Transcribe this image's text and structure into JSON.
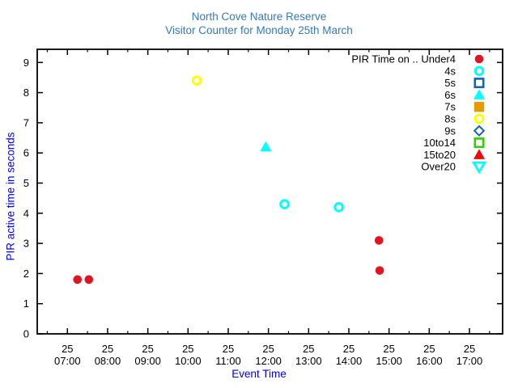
{
  "title": {
    "line1": "North Cove Nature Reserve",
    "line2": "Visitor Counter for Monday 25th March",
    "color": "#3579b9"
  },
  "axes": {
    "x_label": "Event Time",
    "y_label": "PIR active time in seconds",
    "label_color": "#0000ee",
    "x_ticks": [
      {
        "date": "25",
        "time": "07:00",
        "hour": 7
      },
      {
        "date": "25",
        "time": "08:00",
        "hour": 8
      },
      {
        "date": "25",
        "time": "09:00",
        "hour": 9
      },
      {
        "date": "25",
        "time": "10:00",
        "hour": 10
      },
      {
        "date": "25",
        "time": "11:00",
        "hour": 11
      },
      {
        "date": "25",
        "time": "12:00",
        "hour": 12
      },
      {
        "date": "25",
        "time": "13:00",
        "hour": 13
      },
      {
        "date": "25",
        "time": "14:00",
        "hour": 14
      },
      {
        "date": "25",
        "time": "15:00",
        "hour": 15
      },
      {
        "date": "25",
        "time": "16:00",
        "hour": 16
      },
      {
        "date": "25",
        "time": "17:00",
        "hour": 17
      }
    ],
    "y_ticks": [
      "0",
      "1",
      "2",
      "3",
      "4",
      "5",
      "6",
      "7",
      "8",
      "9"
    ]
  },
  "legend": {
    "entries": [
      {
        "label": "PIR Time on .. Under4",
        "shape": "circle",
        "filled": true,
        "color": "#e11422"
      },
      {
        "label": "4s",
        "shape": "circle",
        "filled": false,
        "color": "#00ffff"
      },
      {
        "label": "5s",
        "shape": "square",
        "filled": false,
        "color": "#1663ad"
      },
      {
        "label": "6s",
        "shape": "triangle-up",
        "filled": true,
        "color": "#00ffff"
      },
      {
        "label": "7s",
        "shape": "square",
        "filled": true,
        "color": "#e09c00"
      },
      {
        "label": "8s",
        "shape": "circle",
        "filled": false,
        "color": "#ffff00"
      },
      {
        "label": "9s",
        "shape": "diamond",
        "filled": false,
        "color": "#1663ad"
      },
      {
        "label": "10to14",
        "shape": "square",
        "filled": false,
        "color": "#33cc00"
      },
      {
        "label": "15to20",
        "shape": "triangle-up",
        "filled": true,
        "color": "#f00808"
      },
      {
        "label": "Over20",
        "shape": "triangle-down",
        "filled": false,
        "color": "#00ffff"
      }
    ]
  },
  "chart_data": {
    "type": "scatter",
    "title": "North Cove Nature Reserve",
    "subtitle": "Visitor Counter for Monday 25th March",
    "xlabel": "Event Time",
    "ylabel": "PIR active time in seconds",
    "x_range": [
      "06:15",
      "17:50"
    ],
    "ylim": [
      0,
      9.4
    ],
    "grid": false,
    "legend_position": "top-right-inside",
    "series": [
      {
        "name": "Under4",
        "points": [
          {
            "time": "07:15",
            "seconds": 1.8
          },
          {
            "time": "07:32",
            "seconds": 1.8
          },
          {
            "time": "14:45",
            "seconds": 3.1
          },
          {
            "time": "14:46",
            "seconds": 2.1
          }
        ]
      },
      {
        "name": "4s",
        "points": [
          {
            "time": "12:24",
            "seconds": 4.3
          },
          {
            "time": "13:45",
            "seconds": 4.2
          }
        ]
      },
      {
        "name": "5s",
        "points": []
      },
      {
        "name": "6s",
        "points": [
          {
            "time": "11:56",
            "seconds": 6.2
          }
        ]
      },
      {
        "name": "7s",
        "points": []
      },
      {
        "name": "8s",
        "points": [
          {
            "time": "10:13",
            "seconds": 8.4
          }
        ]
      },
      {
        "name": "9s",
        "points": []
      },
      {
        "name": "10to14",
        "points": []
      },
      {
        "name": "15to20",
        "points": []
      },
      {
        "name": "Over20",
        "points": []
      }
    ]
  }
}
